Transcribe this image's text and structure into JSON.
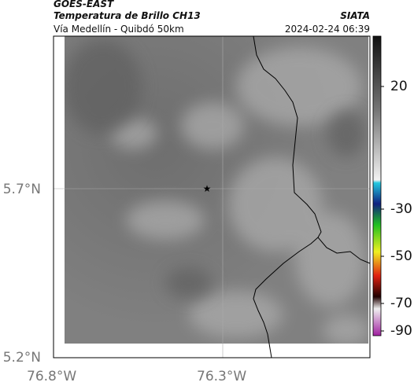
{
  "header": {
    "satellite": "GOES-EAST",
    "product": "Temperatura de Brillo CH13",
    "region": "Vía Medellín - Quibdó 50km",
    "source": "SIATA",
    "timestamp": "2024-02-24 06:39"
  },
  "map": {
    "lat_labels": [
      "5.7°N",
      "5.2°N"
    ],
    "lon_labels": [
      "76.8°W",
      "76.3°W"
    ]
  },
  "colorbar": {
    "tick_labels": [
      "20",
      "-30",
      "-50",
      "-70",
      "-90"
    ]
  }
}
